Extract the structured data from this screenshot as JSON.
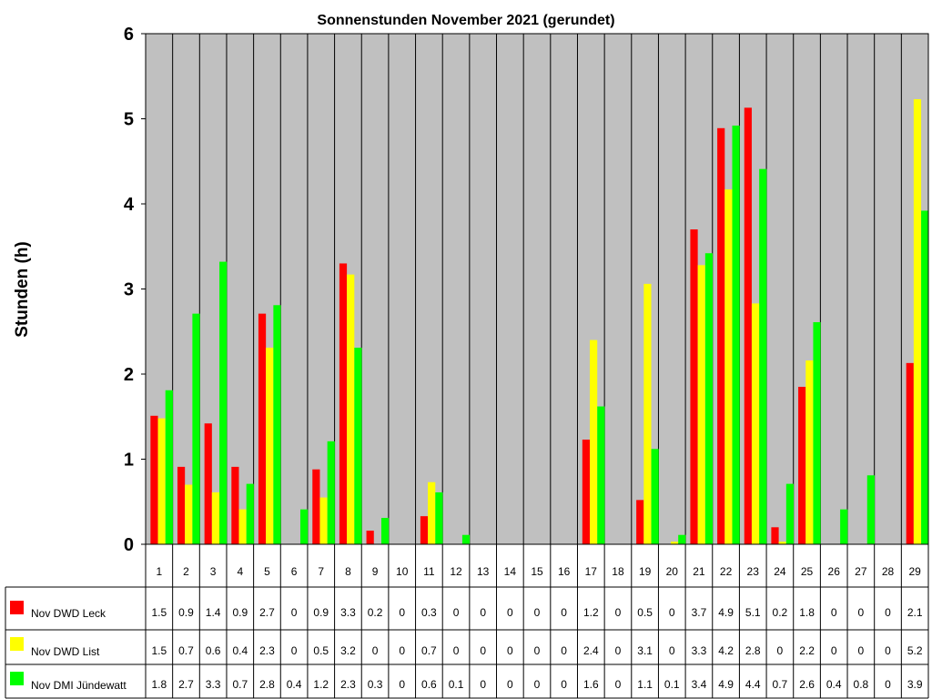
{
  "chart_data": {
    "type": "bar",
    "title": "Sonnenstunden November 2021 (gerundet)",
    "xlabel": "",
    "ylabel": "Stunden (h)",
    "ylim": [
      0,
      6
    ],
    "yticks": [
      0,
      1,
      2,
      3,
      4,
      5,
      6
    ],
    "grid": "vertical",
    "plot_background": "#c0c0c0",
    "legend": "data-table-bottom",
    "categories": [
      "1",
      "2",
      "3",
      "4",
      "5",
      "6",
      "7",
      "8",
      "9",
      "10",
      "11",
      "12",
      "13",
      "14",
      "15",
      "16",
      "17",
      "18",
      "19",
      "20",
      "21",
      "22",
      "23",
      "24",
      "25",
      "26",
      "27",
      "28",
      "29"
    ],
    "series": [
      {
        "name": "Nov DWD Leck",
        "color": "#ff0000",
        "values": [
          1.51,
          0.91,
          1.42,
          0.91,
          2.71,
          0,
          0.88,
          3.3,
          0.16,
          0,
          0.33,
          0,
          0,
          0,
          0,
          0,
          1.23,
          0,
          0.52,
          0,
          3.7,
          4.89,
          5.13,
          0.2,
          1.85,
          0,
          0,
          0,
          2.13
        ],
        "labels": [
          "1.5",
          "0.9",
          "1.4",
          "0.9",
          "2.7",
          "0",
          "0.9",
          "3.3",
          "0.2",
          "0",
          "0.3",
          "0",
          "0",
          "0",
          "0",
          "0",
          "1.2",
          "0",
          "0.5",
          "0",
          "3.7",
          "4.9",
          "5.1",
          "0.2",
          "1.8",
          "0",
          "0",
          "0",
          "2.1"
        ]
      },
      {
        "name": "Nov DWD List",
        "color": "#ffff00",
        "values": [
          1.48,
          0.7,
          0.61,
          0.41,
          2.31,
          0,
          0.55,
          3.17,
          0,
          0,
          0.73,
          0,
          0,
          0,
          0,
          0,
          2.4,
          0,
          3.06,
          0.03,
          3.28,
          4.17,
          2.83,
          0.03,
          2.16,
          0,
          0,
          0,
          5.23
        ],
        "labels": [
          "1.5",
          "0.7",
          "0.6",
          "0.4",
          "2.3",
          "0",
          "0.5",
          "3.2",
          "0",
          "0",
          "0.7",
          "0",
          "0",
          "0",
          "0",
          "0",
          "2.4",
          "0",
          "3.1",
          "0",
          "3.3",
          "4.2",
          "2.8",
          "0",
          "2.2",
          "0",
          "0",
          "0",
          "5.2"
        ]
      },
      {
        "name": "Nov DMI Jündewatt",
        "color": "#00ff00",
        "values": [
          1.81,
          2.71,
          3.32,
          0.71,
          2.81,
          0.41,
          1.21,
          2.31,
          0.31,
          0,
          0.61,
          0.11,
          0,
          0,
          0,
          0,
          1.62,
          0,
          1.12,
          0.11,
          3.42,
          4.92,
          4.41,
          0.71,
          2.61,
          0.41,
          0.81,
          0,
          3.92
        ],
        "labels": [
          "1.8",
          "2.7",
          "3.3",
          "0.7",
          "2.8",
          "0.4",
          "1.2",
          "2.3",
          "0.3",
          "0",
          "0.6",
          "0.1",
          "0",
          "0",
          "0",
          "0",
          "1.6",
          "0",
          "1.1",
          "0.1",
          "3.4",
          "4.9",
          "4.4",
          "0.7",
          "2.6",
          "0.4",
          "0.8",
          "0",
          "3.9"
        ]
      }
    ]
  }
}
